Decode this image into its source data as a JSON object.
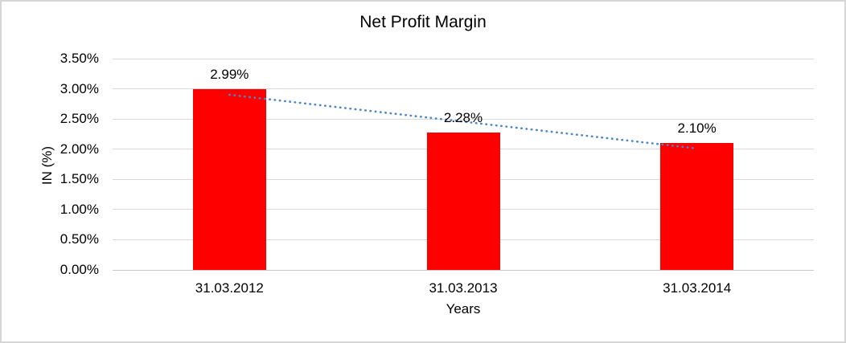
{
  "chart_data": {
    "type": "bar",
    "title": "Net Profit Margin",
    "xlabel": "Years",
    "ylabel": "IN (%)",
    "categories": [
      "31.03.2012",
      "31.03.2013",
      "31.03.2014"
    ],
    "values": [
      2.99,
      2.28,
      2.1
    ],
    "data_labels": [
      "2.99%",
      "2.28%",
      "2.10%"
    ],
    "yticks": [
      "3.50%",
      "3.00%",
      "2.50%",
      "2.00%",
      "1.50%",
      "1.00%",
      "0.50%",
      "0.00%"
    ],
    "ylim": [
      0,
      3.5
    ],
    "grid": true,
    "legend": "none",
    "trendline": true,
    "colors": {
      "bar": "#FF0000",
      "trendline": "#4A86C8",
      "gridline": "#D9D9D9",
      "axis_line": "#C6C6C6",
      "text": "#000000",
      "frame_border": "#D6D6D6"
    }
  }
}
